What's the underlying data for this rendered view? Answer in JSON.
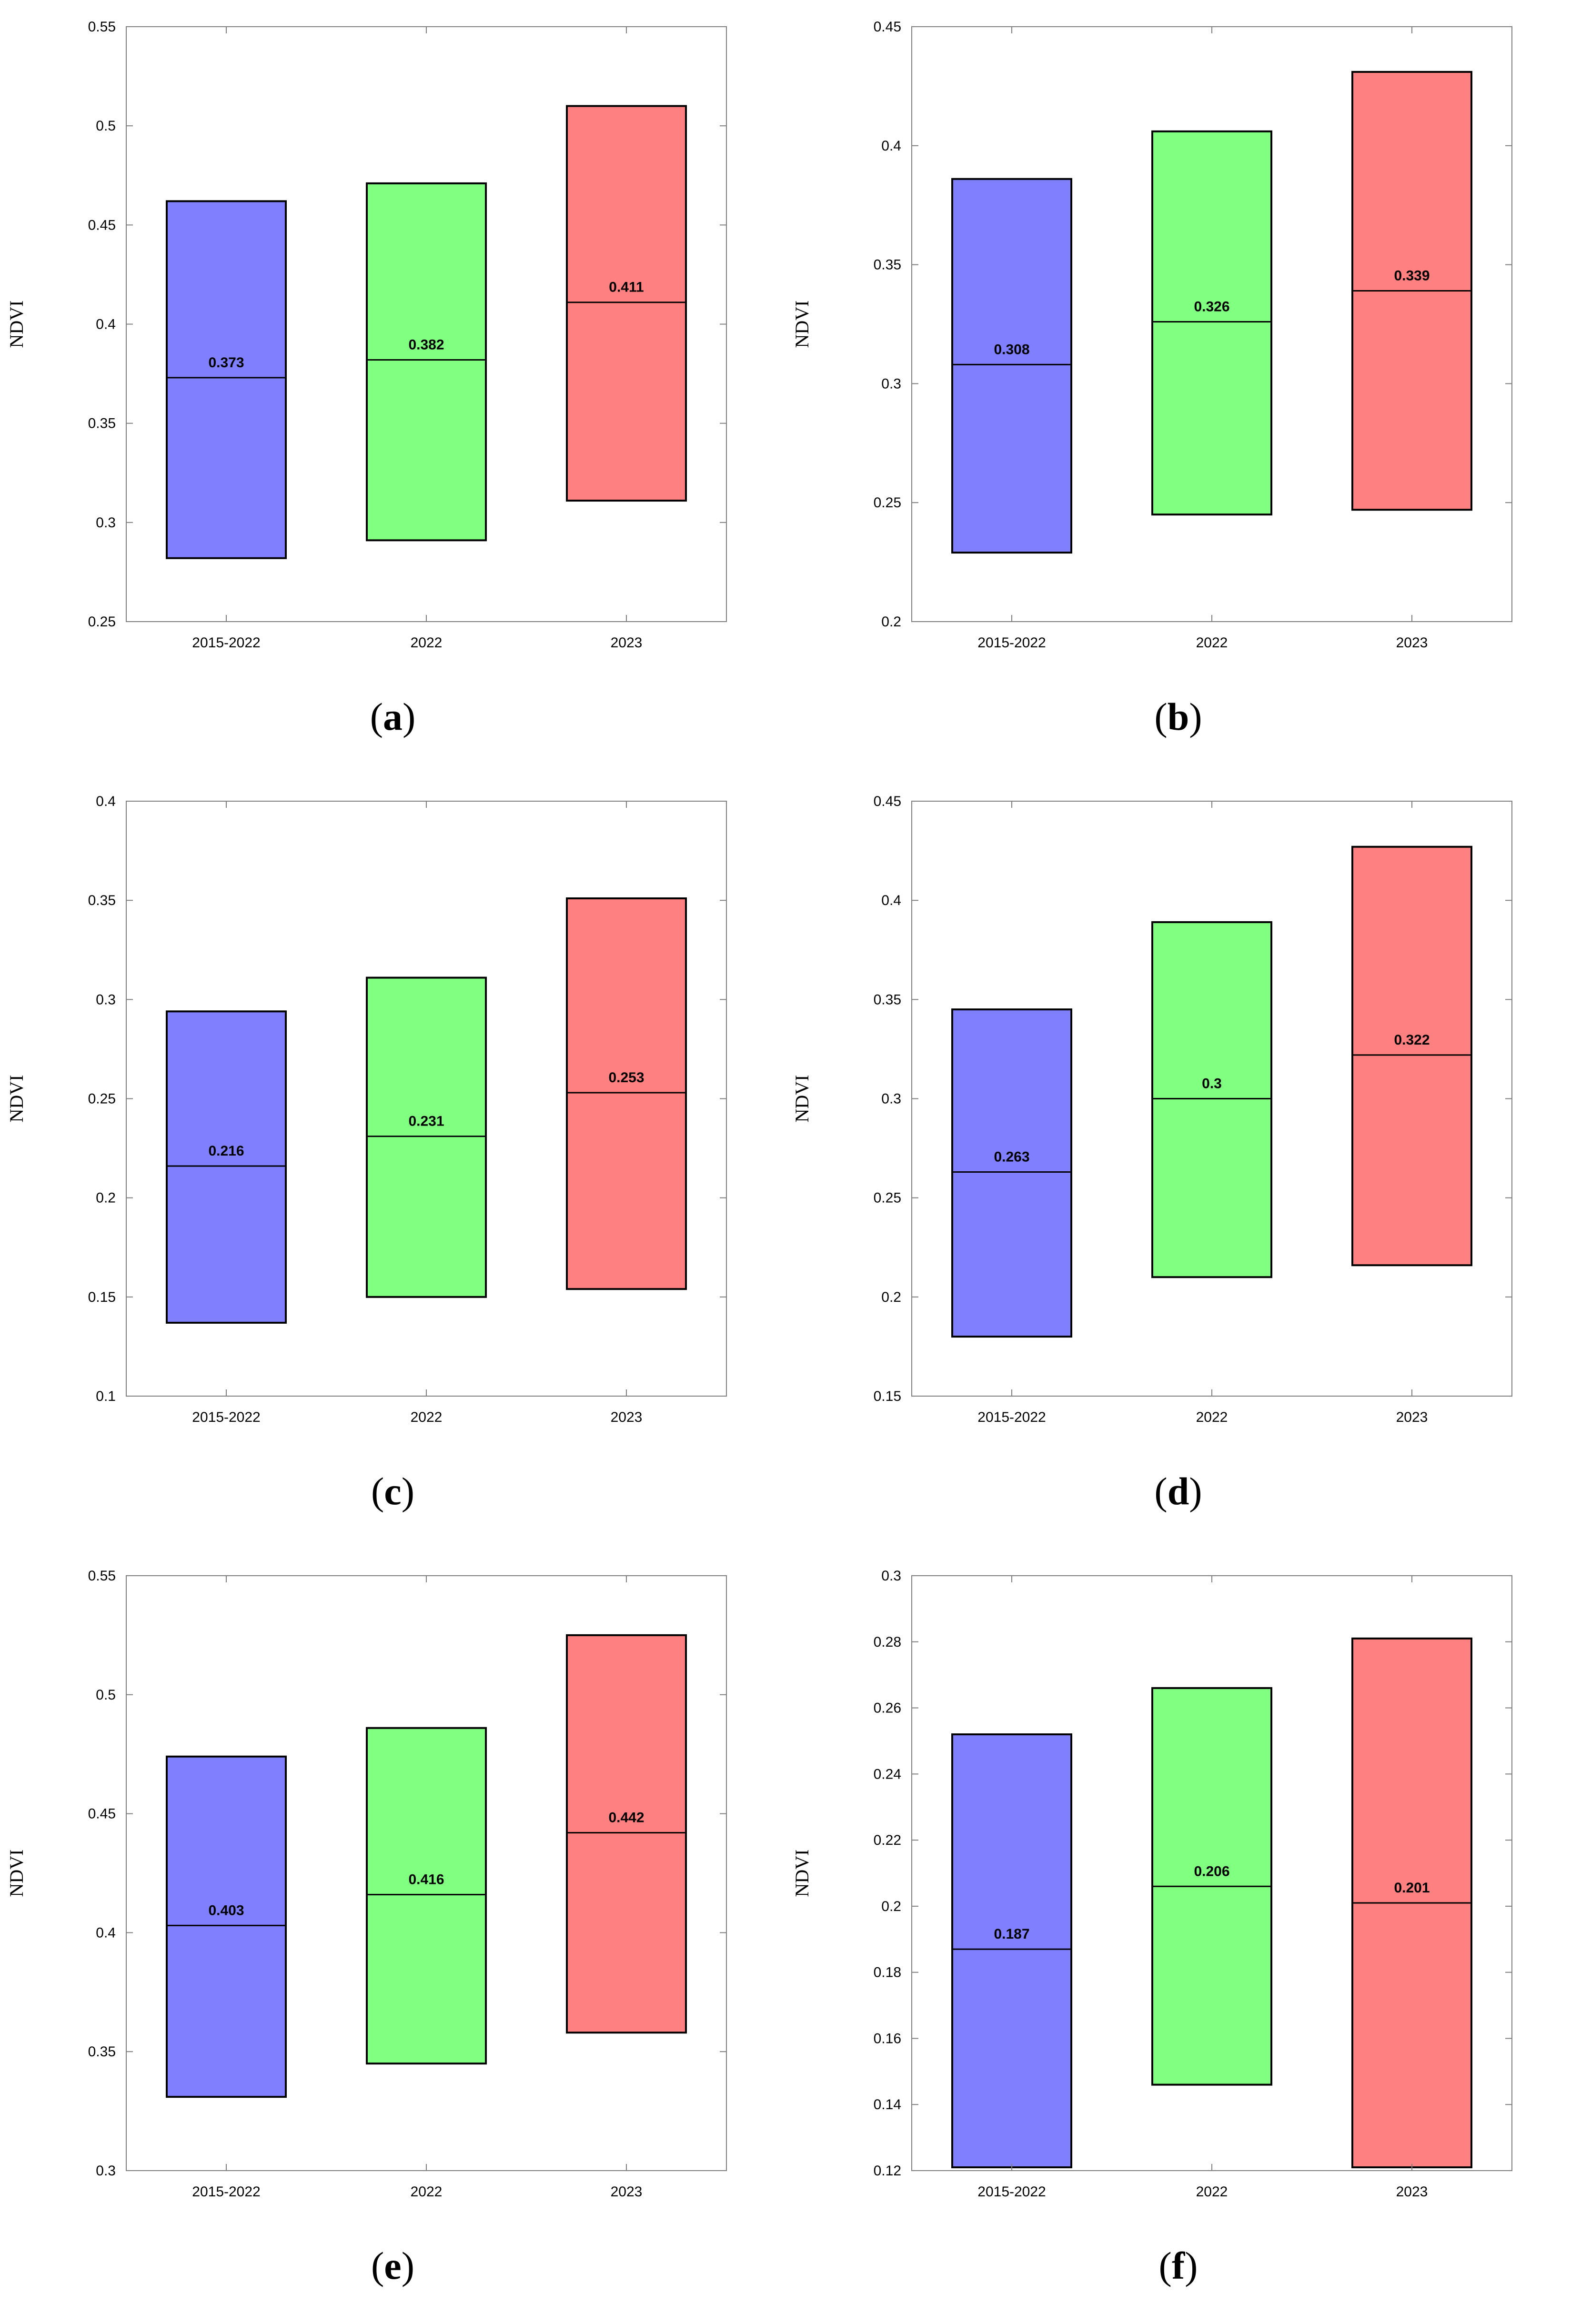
{
  "colors": {
    "series_fill": [
      "#8080ff",
      "#80ff80",
      "#ff8080"
    ],
    "stroke": "#000000",
    "frame": "#7f7f7f"
  },
  "chart_data": [
    {
      "type": "box",
      "panel": "a",
      "caption_letter": "a",
      "ylabel": "NDVI",
      "categories": [
        "2015-2022",
        "2022",
        "2023"
      ],
      "ylim": [
        0.25,
        0.55
      ],
      "yticks": [
        0.25,
        0.3,
        0.35,
        0.4,
        0.45,
        0.5,
        0.55
      ],
      "ytick_labels": [
        "0.25",
        "0.3",
        "0.35",
        "0.4",
        "0.45",
        "0.5",
        "0.55"
      ],
      "boxes": [
        {
          "low": 0.282,
          "high": 0.462,
          "median": 0.373,
          "median_label": "0.373"
        },
        {
          "low": 0.291,
          "high": 0.471,
          "median": 0.382,
          "median_label": "0.382"
        },
        {
          "low": 0.311,
          "high": 0.51,
          "median": 0.411,
          "median_label": "0.411"
        }
      ]
    },
    {
      "type": "box",
      "panel": "b",
      "caption_letter": "b",
      "ylabel": "NDVI",
      "categories": [
        "2015-2022",
        "2022",
        "2023"
      ],
      "ylim": [
        0.2,
        0.45
      ],
      "yticks": [
        0.2,
        0.25,
        0.3,
        0.35,
        0.4,
        0.45
      ],
      "ytick_labels": [
        "0.2",
        "0.25",
        "0.3",
        "0.35",
        "0.4",
        "0.45"
      ],
      "boxes": [
        {
          "low": 0.229,
          "high": 0.386,
          "median": 0.308,
          "median_label": "0.308"
        },
        {
          "low": 0.245,
          "high": 0.406,
          "median": 0.326,
          "median_label": "0.326"
        },
        {
          "low": 0.247,
          "high": 0.431,
          "median": 0.339,
          "median_label": "0.339"
        }
      ]
    },
    {
      "type": "box",
      "panel": "c",
      "caption_letter": "c",
      "ylabel": "NDVI",
      "categories": [
        "2015-2022",
        "2022",
        "2023"
      ],
      "ylim": [
        0.1,
        0.4
      ],
      "yticks": [
        0.1,
        0.15,
        0.2,
        0.25,
        0.3,
        0.35,
        0.4
      ],
      "ytick_labels": [
        "0.1",
        "0.15",
        "0.2",
        "0.25",
        "0.3",
        "0.35",
        "0.4"
      ],
      "boxes": [
        {
          "low": 0.137,
          "high": 0.294,
          "median": 0.216,
          "median_label": "0.216"
        },
        {
          "low": 0.15,
          "high": 0.311,
          "median": 0.231,
          "median_label": "0.231"
        },
        {
          "low": 0.154,
          "high": 0.351,
          "median": 0.253,
          "median_label": "0.253"
        }
      ]
    },
    {
      "type": "box",
      "panel": "d",
      "caption_letter": "d",
      "ylabel": "NDVI",
      "categories": [
        "2015-2022",
        "2022",
        "2023"
      ],
      "ylim": [
        0.15,
        0.45
      ],
      "yticks": [
        0.15,
        0.2,
        0.25,
        0.3,
        0.35,
        0.4,
        0.45
      ],
      "ytick_labels": [
        "0.15",
        "0.2",
        "0.25",
        "0.3",
        "0.35",
        "0.4",
        "0.45"
      ],
      "boxes": [
        {
          "low": 0.18,
          "high": 0.345,
          "median": 0.263,
          "median_label": "0.263"
        },
        {
          "low": 0.21,
          "high": 0.389,
          "median": 0.3,
          "median_label": "0.3"
        },
        {
          "low": 0.216,
          "high": 0.427,
          "median": 0.322,
          "median_label": "0.322"
        }
      ]
    },
    {
      "type": "box",
      "panel": "e",
      "caption_letter": "e",
      "ylabel": "NDVI",
      "categories": [
        "2015-2022",
        "2022",
        "2023"
      ],
      "ylim": [
        0.3,
        0.55
      ],
      "yticks": [
        0.3,
        0.35,
        0.4,
        0.45,
        0.5,
        0.55
      ],
      "ytick_labels": [
        "0.3",
        "0.35",
        "0.4",
        "0.45",
        "0.5",
        "0.55"
      ],
      "boxes": [
        {
          "low": 0.331,
          "high": 0.474,
          "median": 0.403,
          "median_label": "0.403"
        },
        {
          "low": 0.345,
          "high": 0.486,
          "median": 0.416,
          "median_label": "0.416"
        },
        {
          "low": 0.358,
          "high": 0.525,
          "median": 0.442,
          "median_label": "0.442"
        }
      ]
    },
    {
      "type": "box",
      "panel": "f",
      "caption_letter": "f",
      "ylabel": "NDVI",
      "categories": [
        "2015-2022",
        "2022",
        "2023"
      ],
      "ylim": [
        0.12,
        0.3
      ],
      "yticks": [
        0.12,
        0.14,
        0.16,
        0.18,
        0.2,
        0.22,
        0.24,
        0.26,
        0.28,
        0.3
      ],
      "ytick_labels": [
        "0.12",
        "0.14",
        "0.16",
        "0.18",
        "0.2",
        "0.22",
        "0.24",
        "0.26",
        "0.28",
        "0.3"
      ],
      "boxes": [
        {
          "low": 0.121,
          "high": 0.252,
          "median": 0.187,
          "median_label": "0.187"
        },
        {
          "low": 0.146,
          "high": 0.266,
          "median": 0.206,
          "median_label": "0.206"
        },
        {
          "low": 0.121,
          "high": 0.281,
          "median": 0.201,
          "median_label": "0.201"
        }
      ]
    }
  ]
}
